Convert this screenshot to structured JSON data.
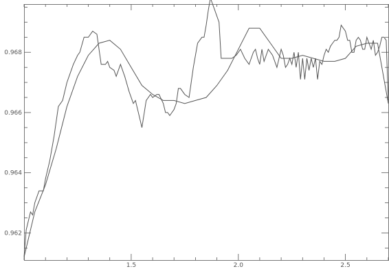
{
  "chart_data": {
    "type": "line",
    "title": "",
    "xlabel": "",
    "ylabel": "",
    "xlim": [
      1.0,
      2.7
    ],
    "ylim": [
      0.9611,
      0.9696
    ],
    "grid": false,
    "x_ticks": [
      1.5,
      2.0,
      2.5
    ],
    "x_tick_labels": [
      "1.5",
      "2.0",
      "2.5"
    ],
    "x_minor_step": 0.1,
    "y_ticks": [
      0.962,
      0.964,
      0.966,
      0.968
    ],
    "y_tick_labels": [
      "0.962",
      "0.964",
      "0.966",
      "0.968"
    ],
    "y_minor_step": 0.0005,
    "series": [
      {
        "style": "raw",
        "color": "#555555",
        "x": [
          1.0,
          1.01,
          1.03,
          1.04,
          1.05,
          1.07,
          1.09,
          1.1,
          1.12,
          1.13,
          1.14,
          1.16,
          1.18,
          1.2,
          1.21,
          1.23,
          1.25,
          1.26,
          1.28,
          1.3,
          1.32,
          1.34,
          1.36,
          1.38,
          1.39,
          1.4,
          1.42,
          1.43,
          1.45,
          1.47,
          1.49,
          1.51,
          1.52,
          1.54,
          1.55,
          1.57,
          1.59,
          1.6,
          1.62,
          1.63,
          1.65,
          1.66,
          1.67,
          1.68,
          1.69,
          1.7,
          1.71,
          1.72,
          1.73,
          1.75,
          1.77,
          1.79,
          1.81,
          1.83,
          1.84,
          1.85,
          1.86,
          1.87,
          1.89,
          1.91,
          1.92,
          1.93,
          1.94,
          1.95,
          1.97,
          1.99,
          2.01,
          2.03,
          2.05,
          2.06,
          2.07,
          2.08,
          2.09,
          2.1,
          2.11,
          2.12,
          2.14,
          2.16,
          2.18,
          2.2,
          2.21,
          2.22,
          2.23,
          2.24,
          2.25,
          2.26,
          2.27,
          2.28,
          2.29,
          2.3,
          2.31,
          2.32,
          2.33,
          2.34,
          2.35,
          2.36,
          2.37,
          2.38,
          2.39,
          2.4,
          2.41,
          2.42,
          2.43,
          2.44,
          2.45,
          2.46,
          2.47,
          2.48,
          2.49,
          2.5,
          2.51,
          2.52,
          2.53,
          2.54,
          2.55,
          2.56,
          2.57,
          2.58,
          2.59,
          2.6,
          2.61,
          2.62,
          2.63,
          2.64,
          2.65,
          2.66,
          2.67,
          2.68,
          2.69,
          2.7
        ],
        "y": [
          0.9612,
          0.9621,
          0.9627,
          0.9626,
          0.963,
          0.9634,
          0.9634,
          0.9638,
          0.9644,
          0.9648,
          0.9652,
          0.9662,
          0.9664,
          0.967,
          0.9672,
          0.9676,
          0.9679,
          0.968,
          0.9685,
          0.9685,
          0.9687,
          0.9686,
          0.9676,
          0.9676,
          0.9677,
          0.9675,
          0.9674,
          0.9672,
          0.9676,
          0.9672,
          0.9667,
          0.9663,
          0.9664,
          0.9658,
          0.9655,
          0.9664,
          0.9666,
          0.9665,
          0.9666,
          0.9666,
          0.9663,
          0.966,
          0.966,
          0.9659,
          0.966,
          0.9661,
          0.9663,
          0.9668,
          0.9668,
          0.9666,
          0.9665,
          0.9675,
          0.9683,
          0.9685,
          0.9685,
          0.9689,
          0.9694,
          0.9698,
          0.9694,
          0.969,
          0.9678,
          0.9678,
          0.9678,
          0.9678,
          0.9678,
          0.9679,
          0.9681,
          0.9678,
          0.9676,
          0.9678,
          0.968,
          0.9681,
          0.9678,
          0.9676,
          0.9681,
          0.9677,
          0.9681,
          0.9679,
          0.9675,
          0.9681,
          0.9679,
          0.9675,
          0.9676,
          0.9678,
          0.9676,
          0.968,
          0.9675,
          0.968,
          0.9671,
          0.9678,
          0.9671,
          0.9678,
          0.9674,
          0.9678,
          0.9675,
          0.9678,
          0.9671,
          0.9677,
          0.9676,
          0.9679,
          0.9681,
          0.968,
          0.9682,
          0.9683,
          0.9684,
          0.9684,
          0.9685,
          0.9689,
          0.9688,
          0.9687,
          0.9684,
          0.9684,
          0.968,
          0.968,
          0.9684,
          0.9685,
          0.9684,
          0.9681,
          0.9681,
          0.9685,
          0.9683,
          0.9681,
          0.9684,
          0.9679,
          0.968,
          0.9682,
          0.9685,
          0.9685,
          0.9684,
          0.9664
        ]
      },
      {
        "style": "smoothed",
        "color": "#555555",
        "x": [
          1.0,
          1.05,
          1.1,
          1.15,
          1.2,
          1.25,
          1.3,
          1.35,
          1.4,
          1.45,
          1.5,
          1.55,
          1.6,
          1.65,
          1.7,
          1.75,
          1.8,
          1.85,
          1.9,
          1.95,
          2.0,
          2.05,
          2.1,
          2.15,
          2.2,
          2.25,
          2.3,
          2.35,
          2.4,
          2.45,
          2.5,
          2.55,
          2.6,
          2.65,
          2.7
        ],
        "y": [
          0.9612,
          0.9627,
          0.9636,
          0.9648,
          0.9662,
          0.9672,
          0.9679,
          0.9683,
          0.9684,
          0.9681,
          0.9675,
          0.9669,
          0.9666,
          0.9664,
          0.9664,
          0.9663,
          0.9664,
          0.9665,
          0.9669,
          0.9674,
          0.9681,
          0.9688,
          0.9688,
          0.9683,
          0.9678,
          0.9678,
          0.9679,
          0.9678,
          0.9677,
          0.9677,
          0.9678,
          0.9682,
          0.9683,
          0.9683,
          0.9663
        ]
      }
    ]
  }
}
